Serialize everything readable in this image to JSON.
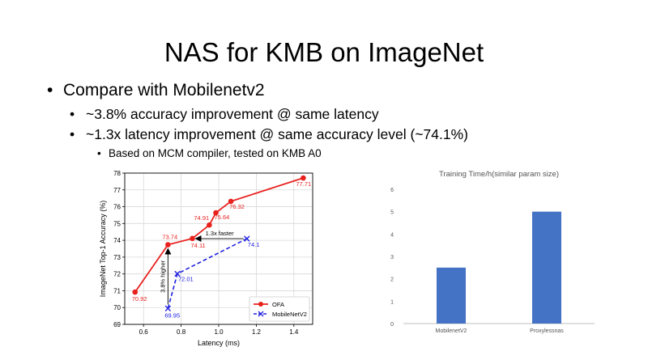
{
  "slide": {
    "title": "NAS for KMB on ImageNet",
    "bullets": [
      {
        "level": 1,
        "text": "Compare with Mobilenetv2"
      },
      {
        "level": 2,
        "text": "~3.8% accuracy improvement @ same latency"
      },
      {
        "level": 2,
        "text": "~1.3x latency improvement @ same accuracy level (~74.1%)"
      },
      {
        "level": 3,
        "text": "Based on MCM compiler, tested on KMB A0"
      }
    ],
    "bullet_glyphs": {
      "l1": "•",
      "l2": "•",
      "l3": "•"
    }
  },
  "chart_data": [
    {
      "type": "line",
      "title": "",
      "xlabel": "Latency (ms)",
      "ylabel": "ImageNet Top-1 Accuracy (%)",
      "xlim": [
        0.5,
        1.5
      ],
      "ylim": [
        69,
        78
      ],
      "xticks": [
        0.6,
        0.8,
        1.0,
        1.2,
        1.4
      ],
      "xtick_labels": [
        "0.6",
        "0.8",
        "1.0",
        "1.2",
        "1.4"
      ],
      "yticks": [
        69,
        70,
        71,
        72,
        73,
        74,
        75,
        76,
        77,
        78
      ],
      "grid": true,
      "legend": "bottom-right",
      "series": [
        {
          "name": "OFA",
          "color": "#e8211d",
          "marker": "circle",
          "style": "solid",
          "x": [
            0.555,
            0.73,
            0.86,
            0.95,
            0.985,
            1.065,
            1.45
          ],
          "y": [
            70.92,
            73.74,
            74.11,
            74.91,
            75.64,
            76.32,
            77.71
          ],
          "labels": [
            "70.92",
            "73.74",
            "74.11",
            "74.91",
            "75.64",
            "76.32",
            "77.71"
          ]
        },
        {
          "name": "MobileNetV2",
          "color": "#2020e0",
          "marker": "x",
          "style": "dashed",
          "x": [
            0.73,
            0.78,
            1.15
          ],
          "y": [
            69.95,
            72.01,
            74.1
          ],
          "labels": [
            "69.95",
            "72.01",
            "74.1"
          ]
        }
      ],
      "annotations": [
        {
          "text": "1.3x faster",
          "from": [
            1.15,
            74.1
          ],
          "to": [
            0.86,
            74.1
          ]
        },
        {
          "text": "3.8% higher",
          "from": [
            0.73,
            69.95
          ],
          "to": [
            0.73,
            73.74
          ]
        }
      ]
    },
    {
      "type": "bar",
      "title": "Training Time/h(similar param size)",
      "categories": [
        "MobilenetV2",
        "Proxylessnas"
      ],
      "values": [
        2.5,
        5
      ],
      "ylim": [
        0,
        6
      ],
      "yticks": [
        0,
        1,
        2,
        3,
        4,
        5,
        6
      ],
      "xlabel": "",
      "ylabel": "",
      "bar_color": "#4472c4",
      "grid": false
    }
  ]
}
